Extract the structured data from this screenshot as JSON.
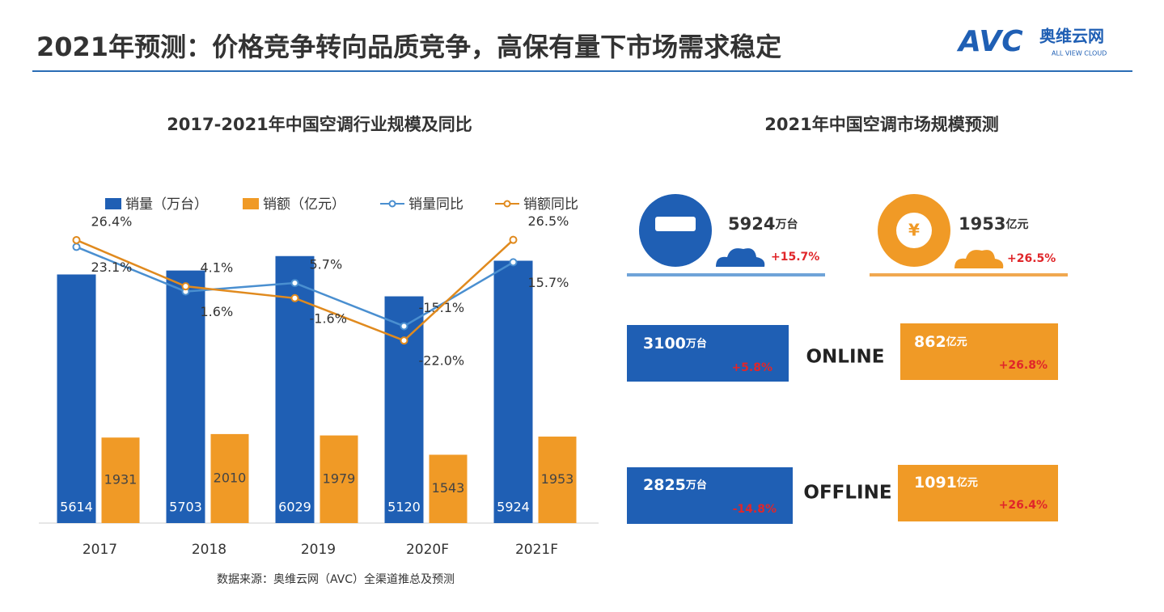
{
  "header": {
    "title": "2021年预测：价格竞争转向品质竞争，高保有量下市场需求稳定",
    "logo": "AVC",
    "logo_cn": "奥维云网",
    "logo_en": "ALL VIEW CLOUD"
  },
  "chart_data": {
    "type": "bar",
    "title": "2017-2021年中国空调行业规模及同比",
    "categories": [
      "2017",
      "2018",
      "2019",
      "2020F",
      "2021F"
    ],
    "ylim": [
      0,
      6700
    ],
    "y2lim": [
      -110,
      33
    ],
    "series": [
      {
        "name": "销量（万台）",
        "type": "bar",
        "color": "#1f5fb4",
        "values": [
          5614,
          5703,
          6029,
          5120,
          5924
        ]
      },
      {
        "name": "销额（亿元）",
        "type": "bar",
        "color": "#f09a26",
        "values": [
          1931,
          2010,
          1979,
          1543,
          1953
        ]
      },
      {
        "name": "销量同比",
        "type": "line",
        "axis": "y2",
        "color": "#4a8fd0",
        "values": [
          23.1,
          1.6,
          5.7,
          -15.1,
          15.7
        ],
        "value_labels": [
          "23.1%",
          "1.6%",
          "5.7%",
          "-15.1%",
          "15.7%"
        ]
      },
      {
        "name": "销额同比",
        "type": "line",
        "axis": "y2",
        "color": "#e08a1e",
        "values": [
          26.4,
          4.1,
          -1.6,
          -22.0,
          26.5
        ],
        "value_labels": [
          "26.4%",
          "4.1%",
          "-1.6%",
          "-22.0%",
          "26.5%"
        ]
      }
    ],
    "source": "数据来源：奥维云网（AVC）全渠道推总及预测"
  },
  "market": {
    "title": "2021年中国空调市场规模预测",
    "yuan_icon": "¥",
    "total": [
      {
        "value": "5924",
        "unit": "万台",
        "growth": "+15.7%"
      },
      {
        "value": "1953",
        "unit": "亿元",
        "growth": "+26.5%"
      }
    ],
    "online": {
      "label": "ONLINE",
      "cards": [
        {
          "value": "3100",
          "unit": "万台",
          "growth": "+5.8%"
        },
        {
          "value": "862",
          "unit": "亿元",
          "growth": "+26.8%"
        }
      ]
    },
    "offline": {
      "label": "OFFLINE",
      "cards": [
        {
          "value": "2825",
          "unit": "万台",
          "growth": "-14.8%"
        },
        {
          "value": "1091",
          "unit": "亿元",
          "growth": "+26.4%"
        }
      ]
    }
  }
}
